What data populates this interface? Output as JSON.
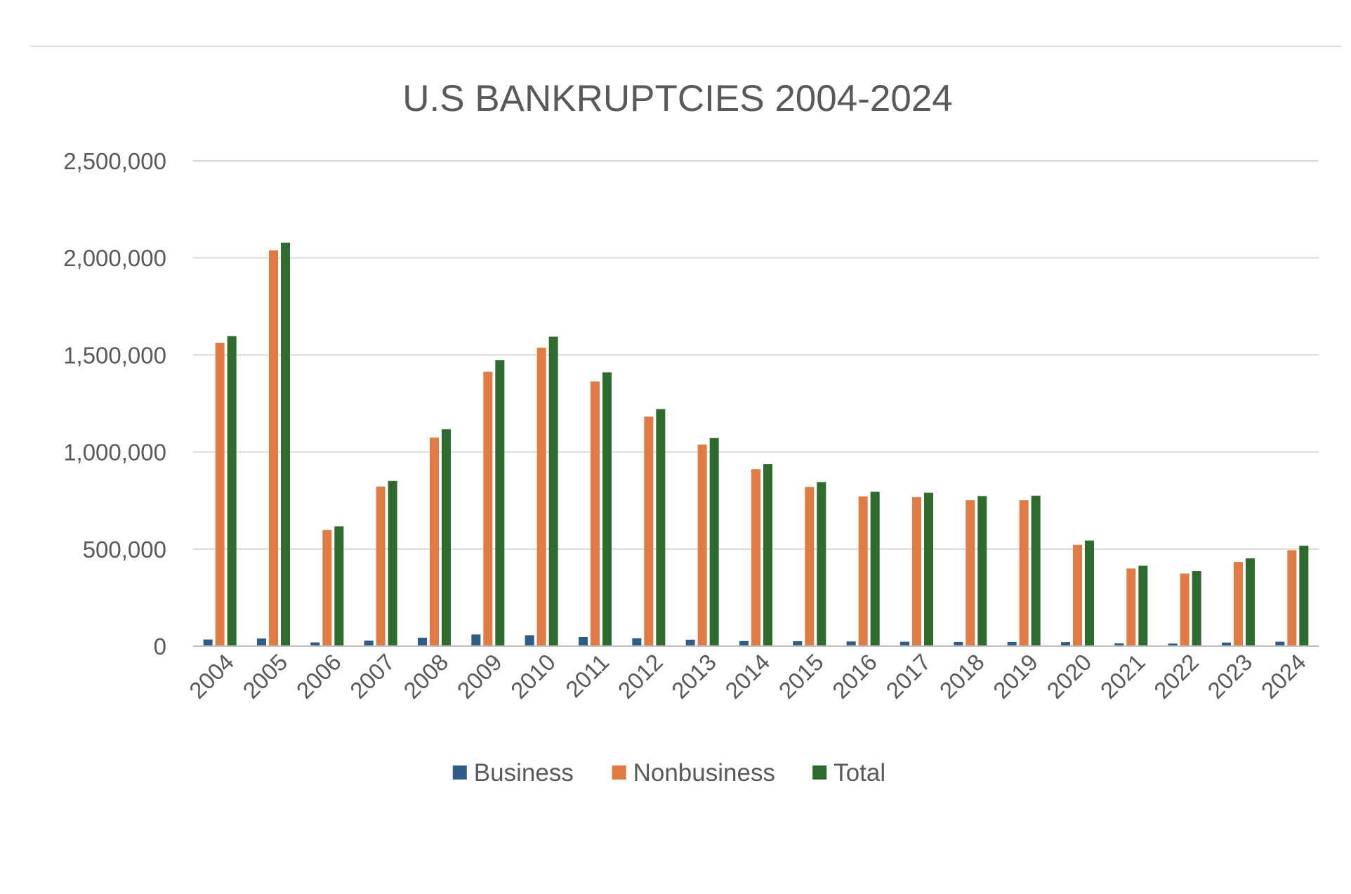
{
  "chart_data": {
    "type": "bar",
    "title": "U.S BANKRUPTCIES 2004-2024",
    "xlabel": "",
    "ylabel": "",
    "categories": [
      "2004",
      "2005",
      "2006",
      "2007",
      "2008",
      "2009",
      "2010",
      "2011",
      "2012",
      "2013",
      "2014",
      "2015",
      "2016",
      "2017",
      "2018",
      "2019",
      "2020",
      "2021",
      "2022",
      "2023",
      "2024"
    ],
    "series": [
      {
        "name": "Business",
        "color": "#2e5c86",
        "values": [
          34000,
          39000,
          19000,
          28000,
          43000,
          60000,
          56000,
          47000,
          40000,
          33000,
          26000,
          25000,
          24000,
          23000,
          22000,
          22000,
          21000,
          14000,
          13000,
          18000,
          23000
        ]
      },
      {
        "name": "Nonbusiness",
        "color": "#e07b43",
        "values": [
          1563000,
          2039000,
          598000,
          822000,
          1074000,
          1413000,
          1537000,
          1363000,
          1182000,
          1038000,
          911000,
          820000,
          771000,
          767000,
          752000,
          752000,
          522000,
          400000,
          374000,
          434000,
          494000
        ]
      },
      {
        "name": "Total",
        "color": "#2e6b2e",
        "values": [
          1597000,
          2078000,
          617000,
          851000,
          1117000,
          1473000,
          1594000,
          1410000,
          1221000,
          1072000,
          937000,
          845000,
          795000,
          790000,
          773000,
          775000,
          544000,
          414000,
          387000,
          452000,
          517000
        ]
      }
    ],
    "ylim": [
      0,
      2500000
    ],
    "yticks": [
      0,
      500000,
      1000000,
      1500000,
      2000000,
      2500000
    ],
    "ytick_labels": [
      "0",
      "500,000",
      "1,000,000",
      "1,500,000",
      "2,000,000",
      "2,500,000"
    ],
    "grid": true,
    "legend_position": "bottom"
  }
}
